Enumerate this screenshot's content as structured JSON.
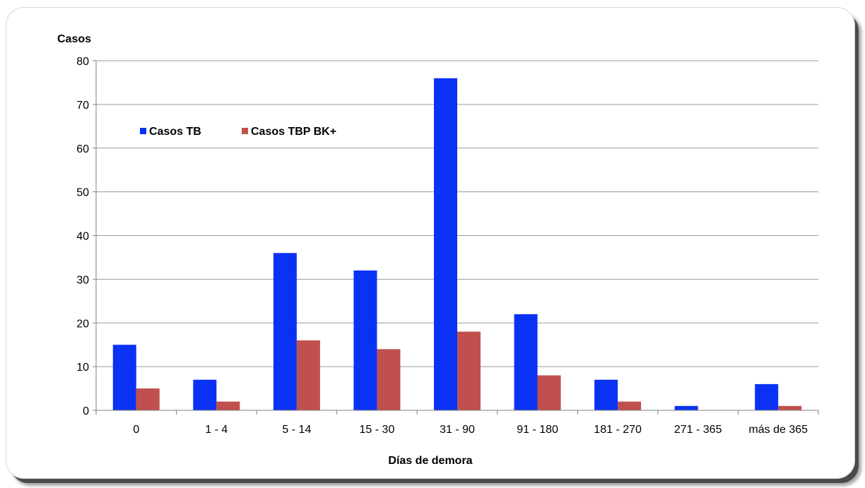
{
  "chart_data": {
    "type": "bar",
    "title": "",
    "xlabel": "Días de demora",
    "ylabel": "Casos",
    "ylim": [
      0,
      80
    ],
    "yticks": [
      0,
      10,
      20,
      30,
      40,
      50,
      60,
      70,
      80
    ],
    "grid": true,
    "legend_position": "top-left",
    "categories": [
      "0",
      "1 - 4",
      "5 - 14",
      "15 - 30",
      "31 - 90",
      "91 - 180",
      "181 - 270",
      "271 - 365",
      "más de 365"
    ],
    "series": [
      {
        "name": "Casos TB",
        "color": "#0a32f5",
        "values": [
          15,
          7,
          36,
          32,
          76,
          22,
          7,
          1,
          6
        ]
      },
      {
        "name": "Casos TBP BK+",
        "color": "#c0504d",
        "values": [
          5,
          2,
          16,
          14,
          18,
          8,
          2,
          0,
          1
        ]
      }
    ]
  }
}
